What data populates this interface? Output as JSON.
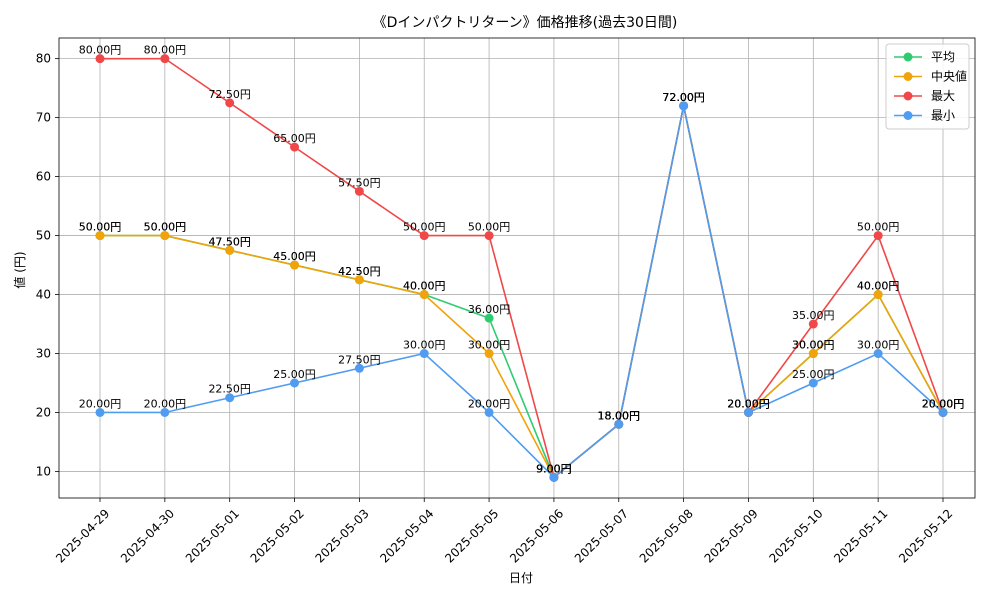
{
  "chart_data": {
    "type": "line",
    "title": "《Dインパクトリターン》価格推移(過去30日間)",
    "xlabel": "日付",
    "ylabel": "値 (円)",
    "ylim": [
      5.5,
      83.5
    ],
    "yticks": [
      10,
      20,
      30,
      40,
      50,
      60,
      70,
      80
    ],
    "grid": true,
    "legend_position": "top-right",
    "categories": [
      "2025-04-29",
      "2025-04-30",
      "2025-05-01",
      "2025-05-02",
      "2025-05-03",
      "2025-05-04",
      "2025-05-05",
      "2025-05-06",
      "2025-05-07",
      "2025-05-08",
      "2025-05-09",
      "2025-05-10",
      "2025-05-11",
      "2025-05-12"
    ],
    "series": [
      {
        "name": "平均",
        "color": "#2ecc71",
        "values": [
          50,
          50,
          47.5,
          45,
          42.5,
          40,
          36,
          9,
          18,
          72,
          20,
          30,
          40,
          20
        ],
        "labels": [
          "50.00円",
          "50.00円",
          "47.50円",
          "45.00円",
          "42.50円",
          "40.00円",
          "36.00円",
          "9.00円",
          "18.00円",
          "72.00円",
          "20.00円",
          "30.00円",
          "40.00円",
          "20.00円"
        ]
      },
      {
        "name": "中央値",
        "color": "#f0a30a",
        "values": [
          50,
          50,
          47.5,
          45,
          42.5,
          40,
          30,
          9,
          18,
          72,
          20,
          30,
          40,
          20
        ],
        "labels": [
          "50.00円",
          "50.00円",
          "47.50円",
          "45.00円",
          "42.50円",
          "40.00円",
          "30.00円",
          "9.00円",
          "18.00円",
          "72.00円",
          "20.00円",
          "30.00円",
          "40.00円",
          "20.00円"
        ]
      },
      {
        "name": "最大",
        "color": "#f04848",
        "values": [
          80,
          80,
          72.5,
          65,
          57.5,
          50,
          50,
          9,
          18,
          72,
          20,
          35,
          50,
          20
        ],
        "labels": [
          "80.00円",
          "80.00円",
          "72.50円",
          "65.00円",
          "57.50円",
          "50.00円",
          "50.00円",
          "9.00円",
          "18.00円",
          "72.00円",
          "20.00円",
          "35.00円",
          "50.00円",
          "20.00円"
        ]
      },
      {
        "name": "最小",
        "color": "#4f9cf0",
        "values": [
          20,
          20,
          22.5,
          25,
          27.5,
          30,
          20,
          9,
          18,
          72,
          20,
          25,
          30,
          20
        ],
        "labels": [
          "20.00円",
          "20.00円",
          "22.50円",
          "25.00円",
          "27.50円",
          "30.00円",
          "20.00円",
          "9.00円",
          "18.00円",
          "72.00円",
          "20.00円",
          "25.00円",
          "30.00円",
          "20.00円"
        ]
      }
    ]
  }
}
